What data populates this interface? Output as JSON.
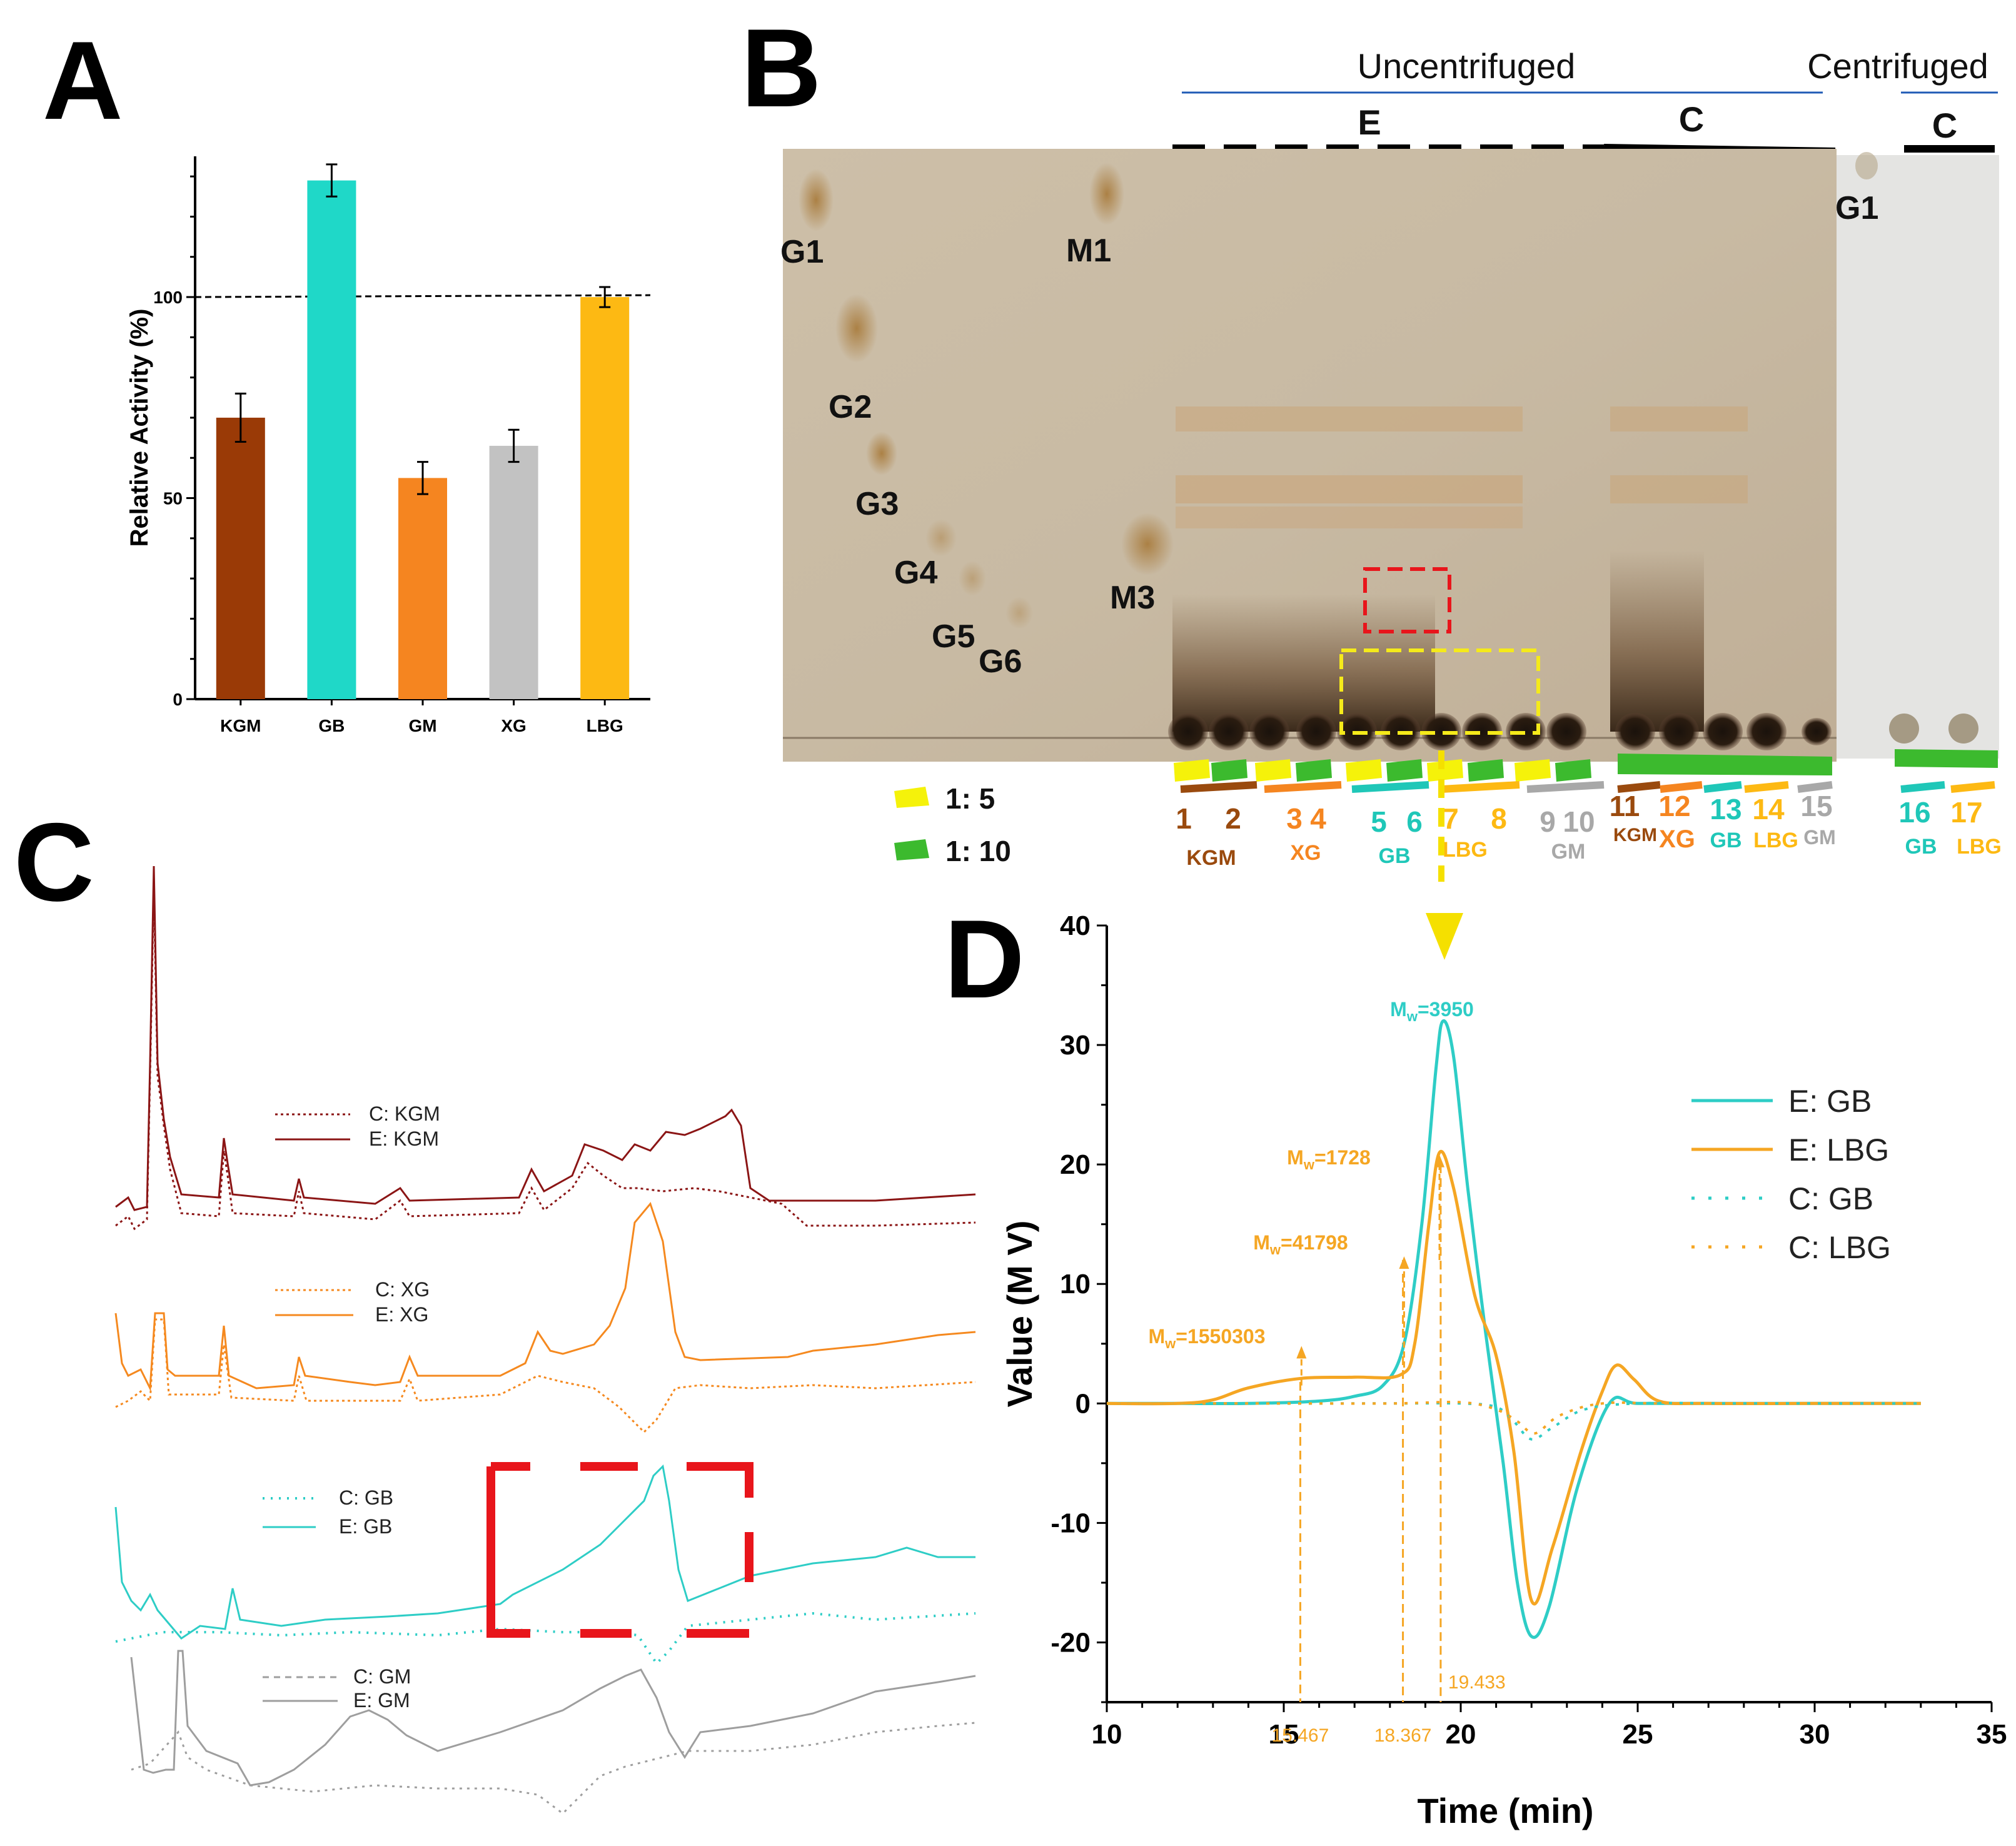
{
  "panels": {
    "A": "A",
    "B": "B",
    "C": "C",
    "D": "D"
  },
  "colors": {
    "KGM": "#9a3a06",
    "GB": "#1fd8c8",
    "GM": "#f58520",
    "XG": "#c2c2c2",
    "LBG": "#fdb913",
    "E_GB": "#2ecdc6",
    "E_LBG": "#f5a623",
    "gm_grey": "#9e9e9e",
    "xg_orange": "#f5891f",
    "kgm_dark": "#8b1515",
    "red_box": "#e8151b",
    "yellow_box": "#f5ea1a"
  },
  "chart_data": [
    {
      "id": "A",
      "type": "bar",
      "title": "",
      "xlabel": "",
      "ylabel": "Relative Activity (%)",
      "ylim": [
        0,
        135
      ],
      "yticks": [
        0,
        50,
        100
      ],
      "categories": [
        "KGM",
        "GB",
        "GM",
        "XG",
        "LBG"
      ],
      "values": [
        70,
        129,
        55,
        63,
        100
      ],
      "errors": [
        6,
        4,
        4,
        4,
        2.5
      ],
      "reference_line": 100
    },
    {
      "id": "D",
      "type": "line",
      "xlabel": "Time (min)",
      "ylabel": "Value (M V)",
      "xlim": [
        10,
        35
      ],
      "ylim": [
        -25,
        40
      ],
      "xticks": [
        10,
        15,
        20,
        25,
        30,
        35
      ],
      "yticks": [
        -20,
        -10,
        0,
        10,
        20,
        30,
        40
      ],
      "series": [
        {
          "name": "E: GB",
          "style": "solid",
          "x": [
            10,
            12,
            14,
            16,
            17,
            17.8,
            18.4,
            18.9,
            19.3,
            19.5,
            19.8,
            20.2,
            20.7,
            21.2,
            21.6,
            22.0,
            22.5,
            23.3,
            24.2,
            25,
            27,
            30,
            33
          ],
          "y": [
            0,
            0,
            0,
            0.2,
            0.6,
            1.5,
            5,
            15,
            28,
            32,
            29,
            18,
            6,
            -5,
            -15,
            -19.5,
            -17,
            -7,
            0,
            0,
            0,
            0,
            0
          ]
        },
        {
          "name": "E: LBG",
          "style": "solid",
          "x": [
            10,
            12,
            13,
            14,
            15.5,
            17,
            18.3,
            18.7,
            19.1,
            19.4,
            19.8,
            20.4,
            21.0,
            21.5,
            22.0,
            22.6,
            23.4,
            24.0,
            24.4,
            24.9,
            25.6,
            27,
            30,
            33
          ],
          "y": [
            0,
            0,
            0.3,
            1.3,
            2.1,
            2.2,
            2.4,
            5,
            15,
            21,
            18,
            9,
            4,
            -4,
            -16.5,
            -12,
            -4,
            1,
            3.2,
            2,
            0.2,
            0,
            0,
            0
          ]
        },
        {
          "name": "C: GB",
          "style": "dotted",
          "x": [
            10,
            14,
            18,
            20,
            21,
            21.5,
            22.0,
            22.6,
            23.5,
            25,
            28,
            33
          ],
          "y": [
            0,
            0,
            0,
            0,
            -0.3,
            -1.5,
            -3,
            -2,
            -0.5,
            0,
            0,
            0
          ]
        },
        {
          "name": "C: LBG",
          "style": "dotted",
          "x": [
            10,
            14,
            18,
            20,
            21,
            21.6,
            22.1,
            22.8,
            24,
            26,
            33
          ],
          "y": [
            0,
            0,
            0,
            0.1,
            -0.5,
            -1.5,
            -2.5,
            -1,
            0,
            0,
            0
          ]
        }
      ],
      "annotations": [
        {
          "label_prefix": "M",
          "label_sub": "w",
          "label_value": "=3950",
          "x": 19.5,
          "y": 32,
          "series": "E: GB"
        },
        {
          "label_prefix": "M",
          "label_sub": "w",
          "label_value": "=1728",
          "x": 19.4,
          "y": 21,
          "series": "E: LBG"
        },
        {
          "label_prefix": "M",
          "label_sub": "w",
          "label_value": "=41798",
          "x": 18.4,
          "y": 12,
          "series": "E: LBG"
        },
        {
          "label_prefix": "M",
          "label_sub": "w",
          "label_value": "=1550303",
          "x": 15.5,
          "y": 2.5,
          "series": "E: LBG"
        }
      ],
      "vlines": [
        {
          "x": 15.467,
          "label": "15.467"
        },
        {
          "x": 18.367,
          "label": "18.367"
        },
        {
          "x": 19.433,
          "label": "19.433"
        }
      ]
    }
  ],
  "panelB": {
    "headers": {
      "uncentrifuged": "Uncentrifuged",
      "centrifuged": "Centrifuged",
      "E": "E",
      "C": "C",
      "C2": "C"
    },
    "standards": [
      "G1",
      "G2",
      "G3",
      "G4",
      "G5",
      "G6",
      "M1",
      "M3"
    ],
    "centrifuged_std": "G1",
    "legend": [
      {
        "label": "1:  5",
        "color": "#f5f20a"
      },
      {
        "label": "1:  10",
        "color": "#3cba2e"
      }
    ],
    "lanes": [
      {
        "num": "1",
        "color": "#9a4a0e"
      },
      {
        "num": "2",
        "color": "#9a4a0e"
      },
      {
        "num": "3",
        "color": "#f58520"
      },
      {
        "num": "4",
        "color": "#f58520"
      },
      {
        "num": "5",
        "color": "#1fc7b8"
      },
      {
        "num": "6",
        "color": "#1fc7b8"
      },
      {
        "num": "7",
        "color": "#fdb913"
      },
      {
        "num": "8",
        "color": "#fdb913"
      },
      {
        "num": "9",
        "color": "#a8a8a8"
      },
      {
        "num": "10",
        "color": "#a8a8a8"
      },
      {
        "num": "11",
        "color": "#9a4a0e"
      },
      {
        "num": "12",
        "color": "#f58520"
      },
      {
        "num": "13",
        "color": "#1fc7b8"
      },
      {
        "num": "14",
        "color": "#fdb913"
      },
      {
        "num": "15",
        "color": "#a8a8a8"
      },
      {
        "num": "16",
        "color": "#1fc7b8"
      },
      {
        "num": "17",
        "color": "#fdb913"
      }
    ],
    "groups": [
      {
        "label": "KGM",
        "color": "#9a4a0e"
      },
      {
        "label": "XG",
        "color": "#f58520"
      },
      {
        "label": "GB",
        "color": "#1fc7b8"
      },
      {
        "label": "LBG",
        "color": "#fdb913"
      },
      {
        "label": "GM",
        "color": "#a8a8a8"
      },
      {
        "label": "KGM",
        "color": "#9a4a0e"
      },
      {
        "label": "XG",
        "color": "#f58520"
      },
      {
        "label": "GB",
        "color": "#1fc7b8"
      },
      {
        "label": "LBG",
        "color": "#fdb913"
      },
      {
        "label": "GM",
        "color": "#a8a8a8"
      },
      {
        "label": "GB",
        "color": "#1fc7b8"
      },
      {
        "label": "LBG",
        "color": "#fdb913"
      }
    ]
  },
  "panelC": {
    "legends": [
      {
        "c": "C: KGM",
        "e": "E: KGM",
        "color": "#8b1515"
      },
      {
        "c": "C: XG",
        "e": "E: XG",
        "color": "#f5891f"
      },
      {
        "c": "C: GB",
        "e": "E: GB",
        "color": "#2ecdc6"
      },
      {
        "c": "C: GM",
        "e": "E: GM",
        "color": "#9e9e9e"
      }
    ]
  }
}
